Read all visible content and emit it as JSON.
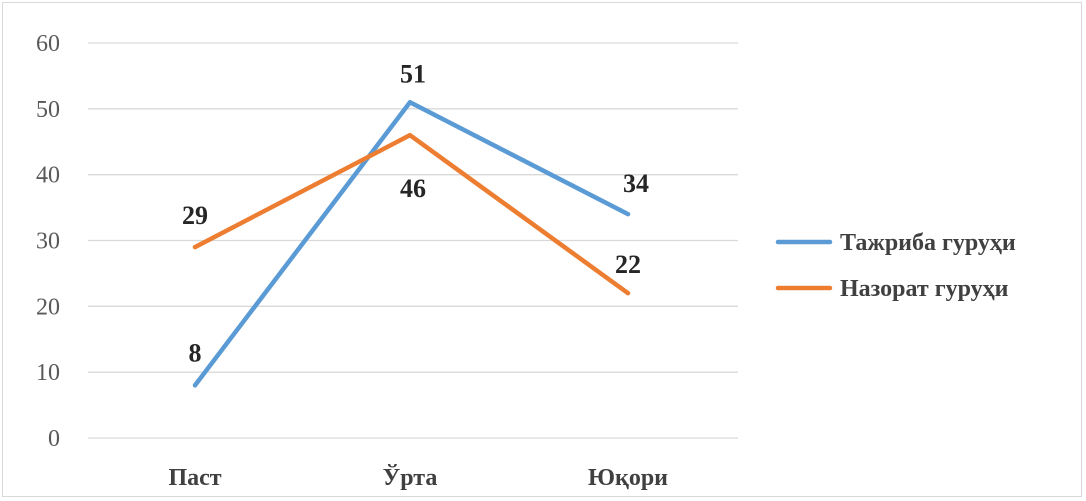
{
  "chart_data": {
    "type": "line",
    "categories": [
      "Паст",
      "Ўрта",
      "Юқори"
    ],
    "series": [
      {
        "name": "Тажриба гуруҳи",
        "values": [
          8,
          51,
          34
        ],
        "color": "#5b9bd5"
      },
      {
        "name": "Назорат гуруҳи",
        "values": [
          29,
          46,
          22
        ],
        "color": "#ed7d31"
      }
    ],
    "ylim": [
      0,
      60
    ],
    "yticks": [
      0,
      10,
      20,
      30,
      40,
      50,
      60
    ],
    "grid": true,
    "legend_position": "right",
    "data_labels": true
  }
}
